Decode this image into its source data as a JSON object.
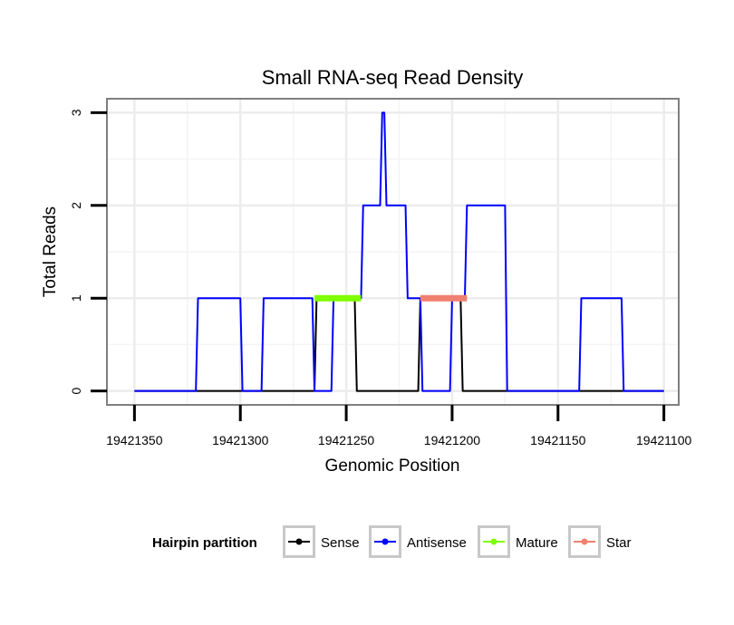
{
  "chart_data": {
    "type": "line",
    "title": "Small RNA-seq Read Density",
    "xlabel": "Genomic Position",
    "ylabel": "Total Reads",
    "xlim": [
      19421363,
      19421093
    ],
    "ylim": [
      -0.15,
      3.15
    ],
    "x_reversed": true,
    "grid": true,
    "xticks": [
      19421350,
      19421300,
      19421250,
      19421200,
      19421150,
      19421100
    ],
    "xtick_labels": [
      "19421350",
      "19421300",
      "19421250",
      "19421200",
      "19421150",
      "19421100"
    ],
    "yticks": [
      0,
      1,
      2,
      3
    ],
    "ytick_labels": [
      "0",
      "1",
      "2",
      "3"
    ],
    "series": [
      {
        "name": "Sense",
        "color": "#000000",
        "width": 2,
        "x": [
          19421350,
          19421265,
          19421264,
          19421246,
          19421245,
          19421216,
          19421215,
          19421196,
          19421195,
          19421100
        ],
        "y": [
          0,
          0,
          1,
          1,
          0,
          0,
          1,
          1,
          0,
          0
        ]
      },
      {
        "name": "Antisense",
        "color": "#0000ff",
        "width": 2,
        "x": [
          19421350,
          19421321,
          19421320,
          19421300,
          19421299,
          19421290,
          19421289,
          19421266,
          19421265,
          19421257,
          19421256,
          19421243,
          19421242,
          19421234,
          19421233,
          19421232,
          19421231,
          19421222,
          19421221,
          19421215,
          19421214,
          19421201,
          19421200,
          19421194,
          19421193,
          19421175,
          19421174,
          19421140,
          19421139,
          19421120,
          19421119,
          19421100
        ],
        "y": [
          0,
          0,
          1,
          1,
          0,
          0,
          1,
          1,
          0,
          0,
          1,
          1,
          2,
          2,
          3,
          3,
          2,
          2,
          1,
          1,
          0,
          0,
          1,
          1,
          2,
          2,
          0,
          0,
          1,
          1,
          0,
          0
        ]
      },
      {
        "name": "Mature",
        "color": "#7fff00",
        "width": 7,
        "x": [
          19421265,
          19421243
        ],
        "y": [
          1,
          1
        ]
      },
      {
        "name": "Star",
        "color": "#f08070",
        "width": 7,
        "x": [
          19421215,
          19421193
        ],
        "y": [
          1,
          1
        ]
      }
    ],
    "legend": {
      "title": "Hairpin partition",
      "position": "bottom",
      "items": [
        {
          "label": "Sense",
          "color": "#000000"
        },
        {
          "label": "Antisense",
          "color": "#0000ff"
        },
        {
          "label": "Mature",
          "color": "#7fff00"
        },
        {
          "label": "Star",
          "color": "#f08070"
        }
      ]
    }
  }
}
